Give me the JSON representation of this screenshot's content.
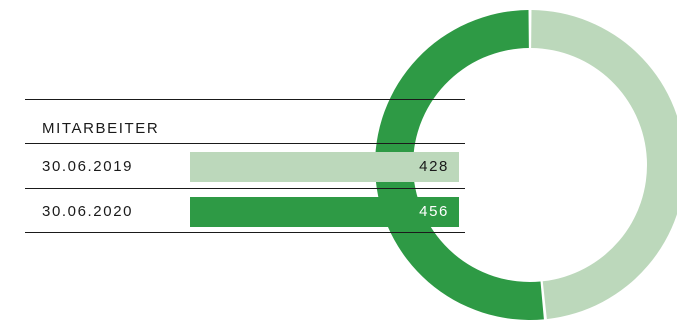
{
  "chart_data": [
    {
      "type": "bar",
      "title": "MITARBEITER",
      "categories": [
        "30.06.2019",
        "30.06.2020"
      ],
      "values": [
        428,
        456
      ],
      "colors": [
        "#bcd8bb",
        "#2e9a45"
      ]
    },
    {
      "type": "pie",
      "values": [
        456,
        428
      ],
      "colors": [
        "#2e9a45",
        "#bcd8bb"
      ]
    }
  ]
}
